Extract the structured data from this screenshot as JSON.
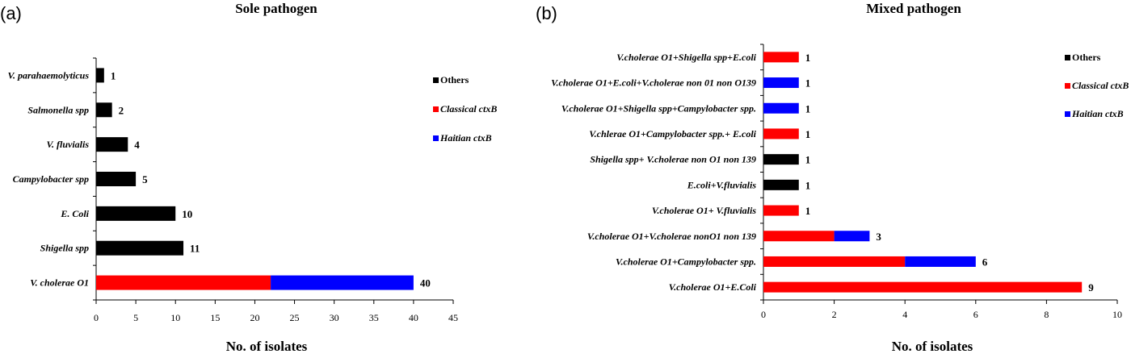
{
  "chart_data": [
    {
      "type": "bar",
      "panel_label": "(a)",
      "title": "Sole pathogen",
      "xlabel": "No. of  isolates",
      "ylabel": "",
      "orientation": "horizontal",
      "stacked": true,
      "xlim": [
        0,
        45
      ],
      "xticks": [
        0,
        5,
        10,
        15,
        20,
        25,
        30,
        35,
        40,
        45
      ],
      "categories": [
        "V. parahaemolyticus",
        "Salmonella spp",
        "V. fluvialis",
        "Campylobacter spp",
        "E. Coli",
        "Shigella spp",
        "V. cholerae O1"
      ],
      "series": [
        {
          "name": "Others",
          "color": "#000000",
          "values": [
            1,
            2,
            4,
            5,
            10,
            11,
            0
          ]
        },
        {
          "name": "Classical ctxB",
          "color": "#ff0000",
          "values": [
            0,
            0,
            0,
            0,
            0,
            0,
            22
          ]
        },
        {
          "name": "Haitian ctxB",
          "color": "#0000ff",
          "values": [
            0,
            0,
            0,
            0,
            0,
            0,
            18
          ]
        }
      ],
      "totals": [
        "1",
        "2",
        "4",
        "5",
        "10",
        "11",
        "40"
      ],
      "legend": [
        "Others",
        "Classical ctxB",
        "Haitian ctxB"
      ],
      "legend_position": "right",
      "grid": false
    },
    {
      "type": "bar",
      "panel_label": "(b)",
      "title": "Mixed pathogen",
      "xlabel": "No. of  isolates",
      "ylabel": "",
      "orientation": "horizontal",
      "stacked": true,
      "xlim": [
        0,
        10
      ],
      "xticks": [
        0,
        2,
        4,
        6,
        8,
        10
      ],
      "categories": [
        "V.cholerae O1+Shigella spp+E.coli",
        "V.cholerae O1+E.coli+V.cholerae non 01 non O139",
        "V.cholerae O1+Shigella spp+Campylobacter spp.",
        "V.chlerae O1+Campylobacter spp.+ E.coli",
        "Shigella spp+ V.cholerae non O1 non 139",
        "E.coli+V.fluvialis",
        "V.cholerae O1+ V.fluvialis",
        "V.cholerae O1+V.cholerae nonO1 non 139",
        "V.cholerae O1+Campylobacter spp.",
        "V.cholerae O1+E.Coli"
      ],
      "series": [
        {
          "name": "Others",
          "color": "#000000",
          "values": [
            0,
            0,
            0,
            0,
            1,
            1,
            0,
            0,
            0,
            0
          ]
        },
        {
          "name": "Classical ctxB",
          "color": "#ff0000",
          "values": [
            1,
            0,
            0,
            1,
            0,
            0,
            1,
            2,
            4,
            9
          ]
        },
        {
          "name": "Haitian ctxB",
          "color": "#0000ff",
          "values": [
            0,
            1,
            1,
            0,
            0,
            0,
            0,
            1,
            2,
            0
          ]
        }
      ],
      "totals": [
        "1",
        "1",
        "1",
        "1",
        "1",
        "1",
        "1",
        "3",
        "6",
        "9"
      ],
      "legend": [
        "Others",
        "Classical ctxB",
        "Haitian ctxB"
      ],
      "legend_position": "right",
      "grid": false
    }
  ]
}
